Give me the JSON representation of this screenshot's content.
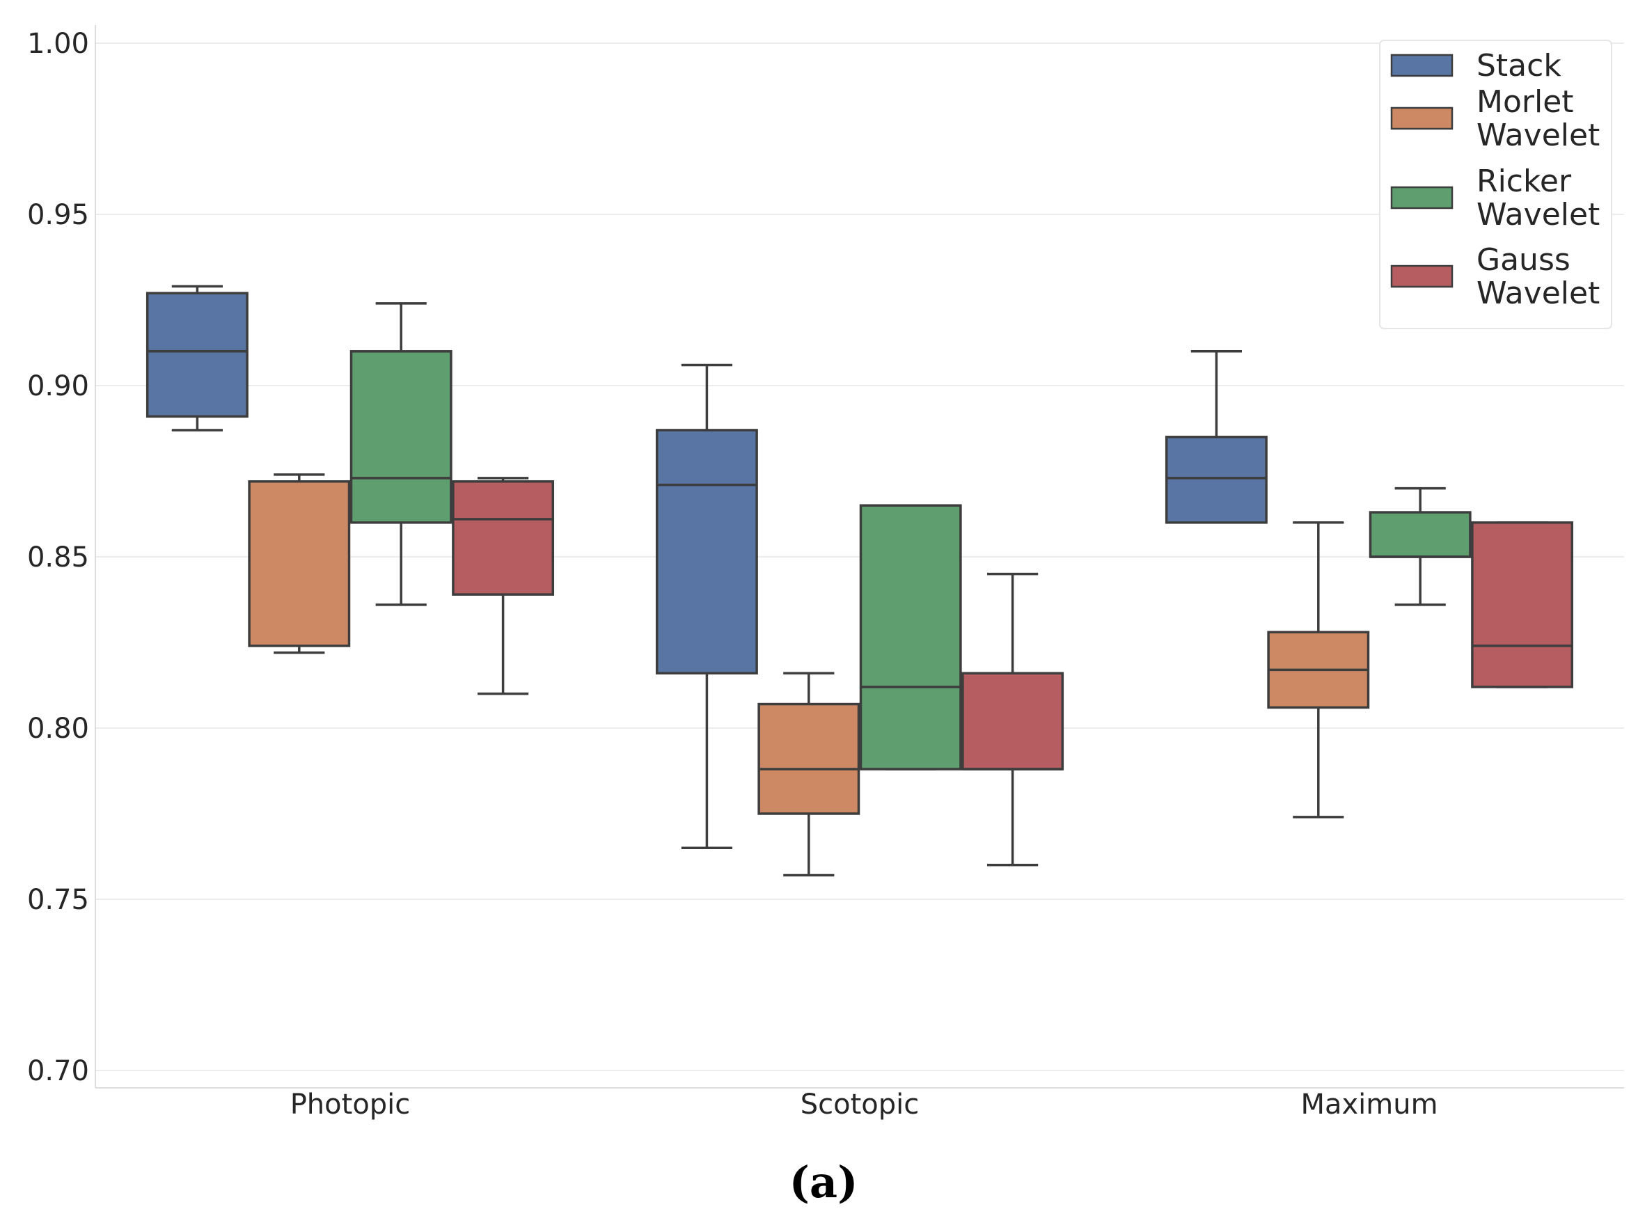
{
  "chart_data": {
    "type": "box",
    "caption": "(a)",
    "categories": [
      "Photopic",
      "Scotopic",
      "Maximum"
    ],
    "ylim": [
      0.7,
      1.0
    ],
    "yticks": [
      "0.70",
      "0.75",
      "0.80",
      "0.85",
      "0.90",
      "0.95",
      "1.00"
    ],
    "ytick_values": [
      0.7,
      0.75,
      0.8,
      0.85,
      0.9,
      0.95,
      1.0
    ],
    "grid": true,
    "legend_position": "top-right",
    "series": [
      {
        "name": "Stack",
        "legend_lines": [
          "Stack"
        ],
        "color": "#5875a4",
        "boxes": [
          {
            "min": 0.887,
            "q1": 0.891,
            "median": 0.91,
            "q3": 0.927,
            "max": 0.929
          },
          {
            "min": 0.765,
            "q1": 0.816,
            "median": 0.871,
            "q3": 0.887,
            "max": 0.906
          },
          {
            "min": 0.86,
            "q1": 0.86,
            "median": 0.873,
            "q3": 0.885,
            "max": 0.91
          }
        ]
      },
      {
        "name": "Morlet Wavelet",
        "legend_lines": [
          "Morlet",
          "Wavelet"
        ],
        "color": "#cc8963",
        "boxes": [
          {
            "min": 0.822,
            "q1": 0.824,
            "median": 0.872,
            "q3": 0.872,
            "max": 0.874
          },
          {
            "min": 0.757,
            "q1": 0.775,
            "median": 0.788,
            "q3": 0.807,
            "max": 0.816
          },
          {
            "min": 0.774,
            "q1": 0.806,
            "median": 0.817,
            "q3": 0.828,
            "max": 0.86
          }
        ]
      },
      {
        "name": "Ricker Wavelet",
        "legend_lines": [
          "Ricker",
          "Wavelet"
        ],
        "color": "#5f9e6e",
        "boxes": [
          {
            "min": 0.836,
            "q1": 0.86,
            "median": 0.873,
            "q3": 0.91,
            "max": 0.924
          },
          {
            "min": 0.788,
            "q1": 0.788,
            "median": 0.812,
            "q3": 0.865,
            "max": 0.865
          },
          {
            "min": 0.836,
            "q1": 0.85,
            "median": 0.85,
            "q3": 0.863,
            "max": 0.87
          }
        ]
      },
      {
        "name": "Gauss Wavelet",
        "legend_lines": [
          "Gauss",
          "Wavelet"
        ],
        "color": "#b55d60",
        "boxes": [
          {
            "min": 0.81,
            "q1": 0.839,
            "median": 0.861,
            "q3": 0.872,
            "max": 0.873
          },
          {
            "min": 0.76,
            "q1": 0.788,
            "median": 0.788,
            "q3": 0.816,
            "max": 0.845
          },
          {
            "min": 0.812,
            "q1": 0.812,
            "median": 0.824,
            "q3": 0.86,
            "max": 0.86
          }
        ]
      }
    ]
  }
}
